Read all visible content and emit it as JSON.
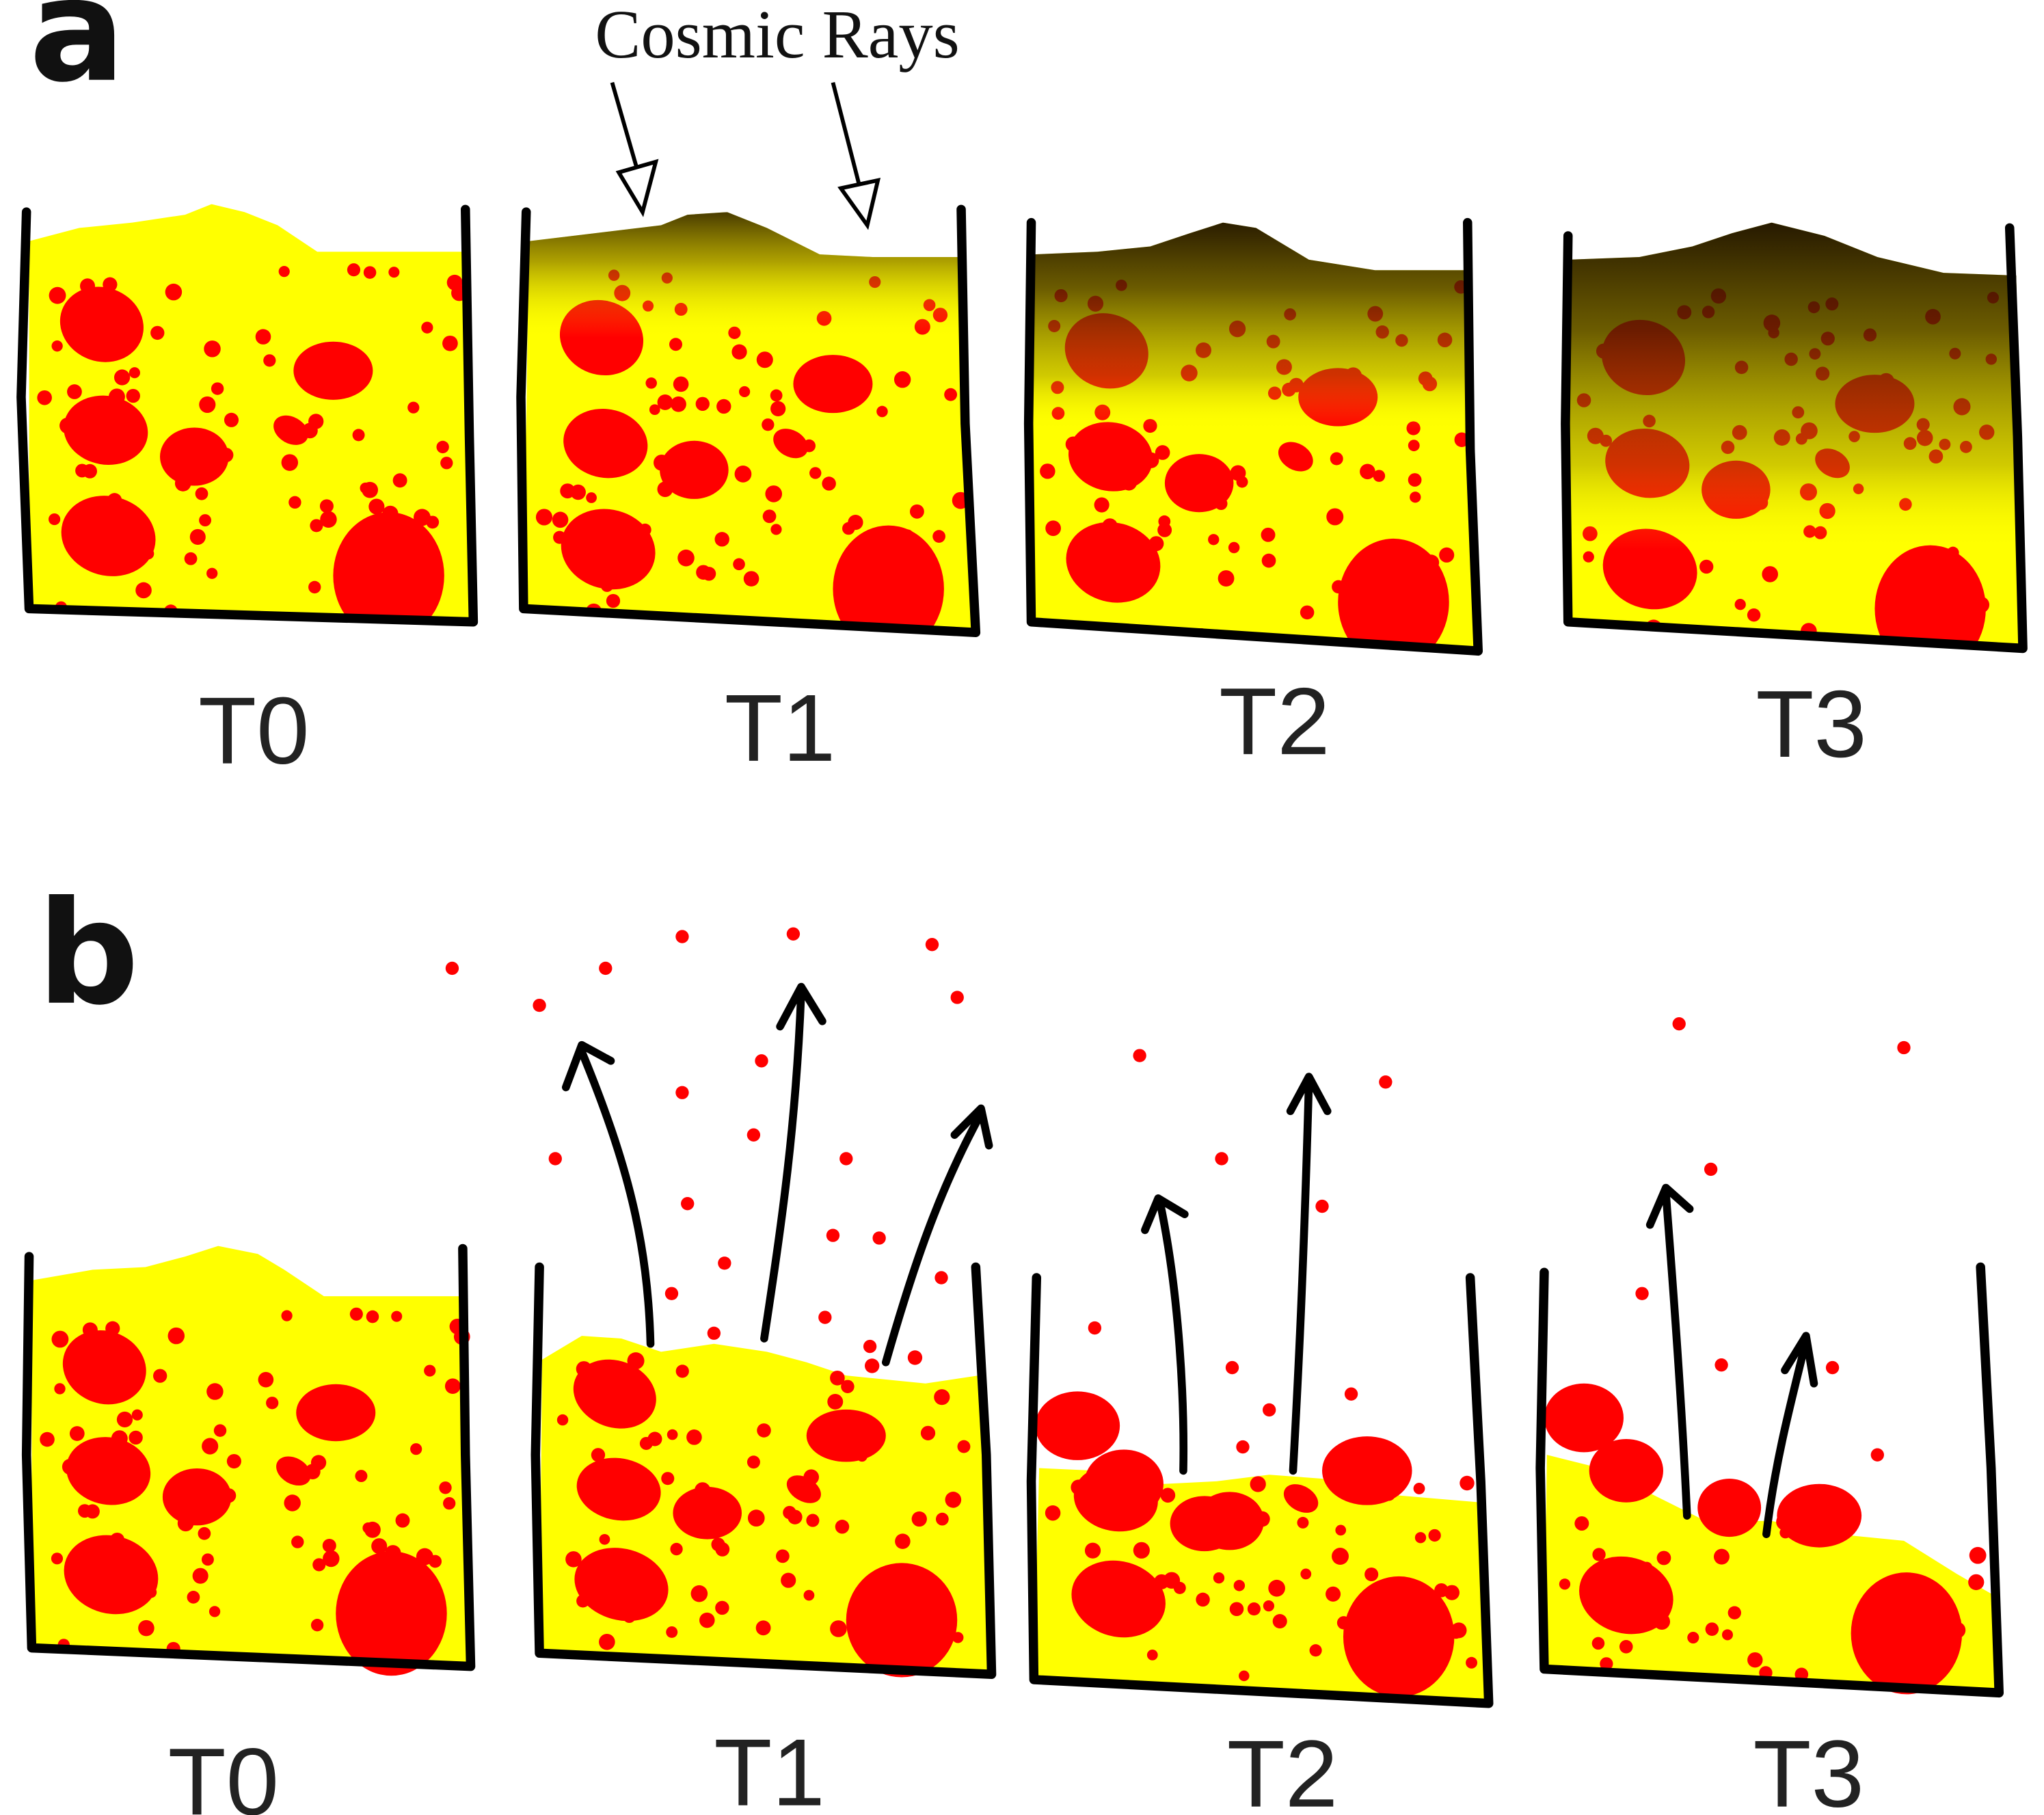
{
  "panels": [
    {
      "letter": "a",
      "labels": [
        "T0",
        "T1",
        "T2",
        "T3"
      ],
      "annotation": "Cosmic Rays"
    },
    {
      "letter": "b",
      "labels": [
        "T0",
        "T1",
        "T2",
        "T3"
      ]
    }
  ],
  "colors": {
    "regolith": "#ffff00",
    "clasts": "#ff0000",
    "weathered": "#1a0d00",
    "outline": "#000000"
  }
}
